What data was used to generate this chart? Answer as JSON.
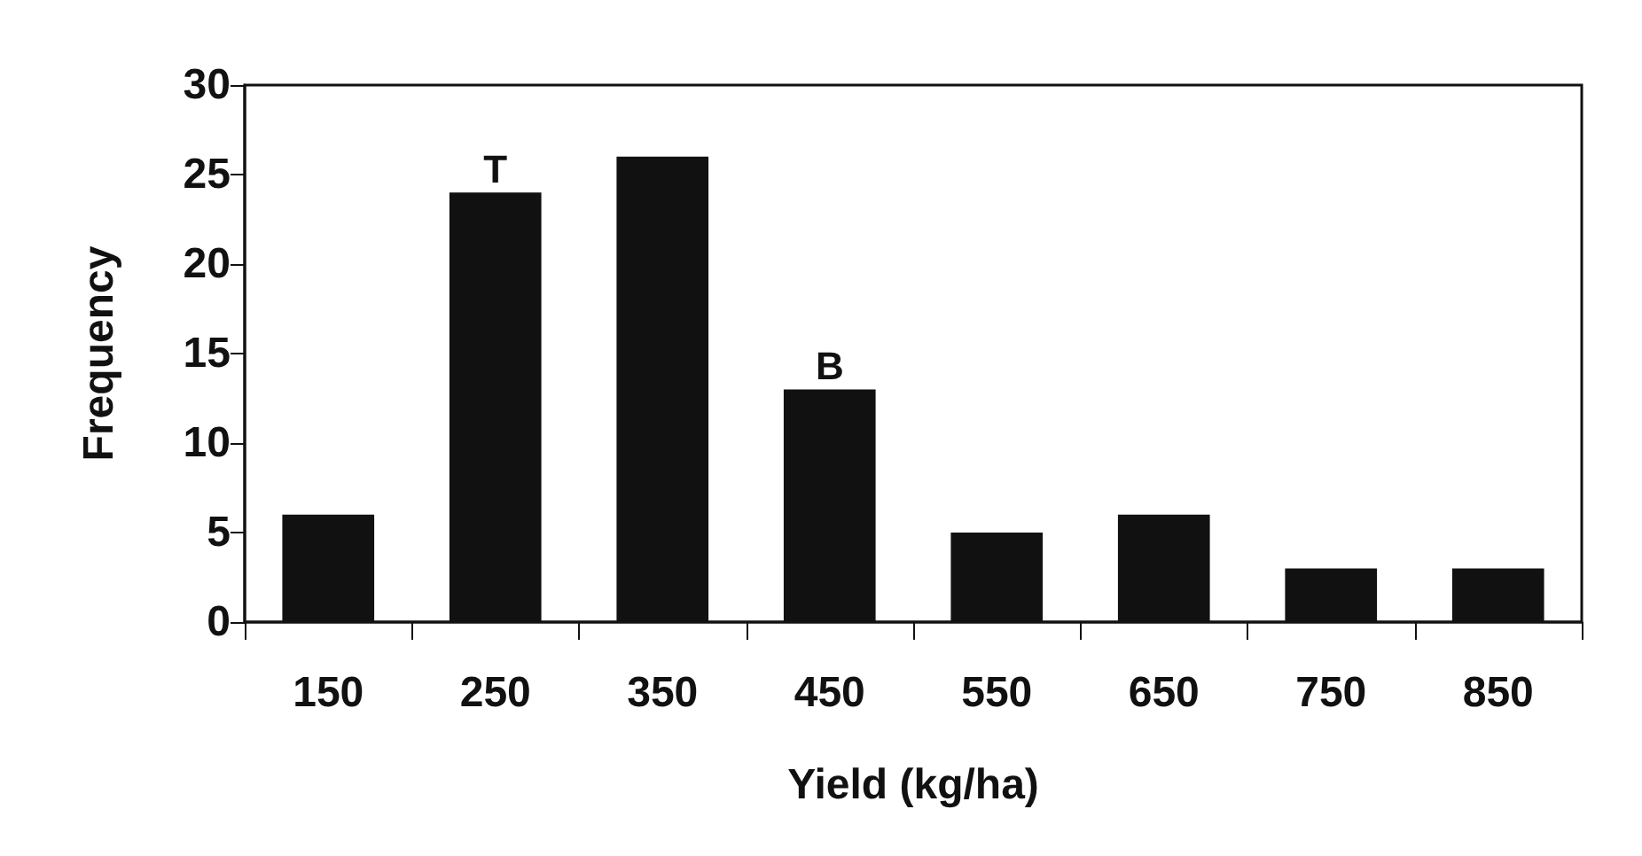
{
  "chart_data": {
    "type": "bar",
    "xlabel": "Yield (kg/ha)",
    "ylabel": "Frequency",
    "categories": [
      "150",
      "250",
      "350",
      "450",
      "550",
      "650",
      "750",
      "850"
    ],
    "values": [
      6,
      24,
      26,
      13,
      5,
      6,
      3,
      3
    ],
    "color": "#111111",
    "ylim": [
      0,
      30
    ],
    "yticks": [
      0,
      5,
      10,
      15,
      20,
      25,
      30
    ],
    "annotations": [
      {
        "text": "T",
        "x": "250",
        "y": 24
      },
      {
        "text": "B",
        "x": "450",
        "y": 13
      }
    ],
    "grid": false
  }
}
